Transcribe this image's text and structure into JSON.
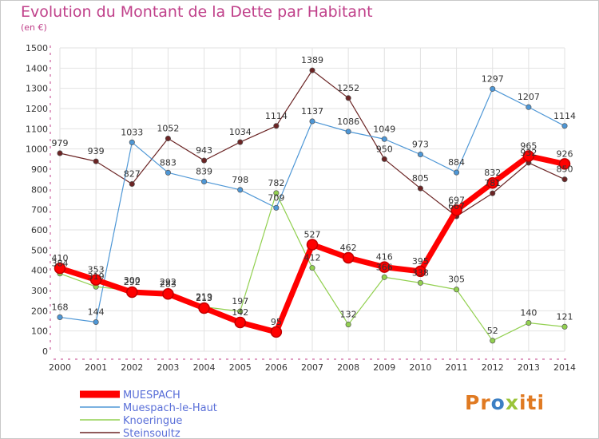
{
  "chart_data": {
    "type": "line",
    "title": "Evolution du Montant de la Dette par Habitant",
    "subtitle": "(en €)",
    "x": [
      "2000",
      "2001",
      "2002",
      "2003",
      "2004",
      "2005",
      "2006",
      "2007",
      "2008",
      "2009",
      "2010",
      "2011",
      "2012",
      "2013",
      "2014"
    ],
    "ylim": [
      0,
      1500
    ],
    "yticks": [
      0,
      100,
      200,
      300,
      400,
      500,
      600,
      700,
      800,
      900,
      1000,
      1100,
      1200,
      1300,
      1400,
      1500
    ],
    "grid": true,
    "legend_position": "bottom-left",
    "series": [
      {
        "name": "MUESPACH",
        "color": "#ff0000",
        "emphasis": true,
        "values": [
          410,
          353,
          292,
          283,
          213,
          142,
          95,
          527,
          462,
          416,
          395,
          697,
          832,
          965,
          926
        ]
      },
      {
        "name": "Muespach-le-Haut",
        "color": "#4e97d6",
        "values": [
          168,
          144,
          1033,
          883,
          839,
          798,
          709,
          1137,
          1086,
          1049,
          973,
          884,
          1297,
          1207,
          1114
        ]
      },
      {
        "name": "Knoeringue",
        "color": "#92d050",
        "values": [
          384,
          319,
          300,
          292,
          219,
          197,
          782,
          412,
          132,
          366,
          338,
          305,
          52,
          140,
          121
        ]
      },
      {
        "name": "Steinsoultz",
        "color": "#6b2424",
        "values": [
          979,
          939,
          827,
          1052,
          943,
          1034,
          1114,
          1389,
          1252,
          950,
          805,
          667,
          781,
          932,
          850
        ]
      }
    ],
    "data_labels": [
      {
        "series": 0,
        "labels": [
          "410",
          "353",
          "292",
          "283",
          "213",
          "142",
          "95",
          "527",
          "462",
          "416",
          "395",
          "697",
          "832",
          "965",
          "926"
        ]
      },
      {
        "series": 1,
        "labels": [
          "168",
          "144",
          "1033",
          "883",
          "839",
          "798",
          "709",
          "1137",
          "1086",
          "1049",
          "973",
          "884",
          "1297",
          "1207",
          "1114"
        ]
      },
      {
        "series": 2,
        "labels": [
          "384",
          "319",
          "300",
          "292",
          "219",
          "197",
          "782",
          "412",
          "132",
          "366",
          "338",
          "305",
          "52",
          "140",
          "121"
        ]
      },
      {
        "series": 3,
        "labels": [
          "979",
          "939",
          "827",
          "1052",
          "943",
          "1034",
          "1114",
          "1389",
          "1252",
          "950",
          "805",
          "667",
          "781",
          "932",
          "850"
        ]
      }
    ]
  },
  "logo": {
    "part1": "Pr",
    "part2": "o",
    "part3": "x",
    "part4": "iti"
  }
}
